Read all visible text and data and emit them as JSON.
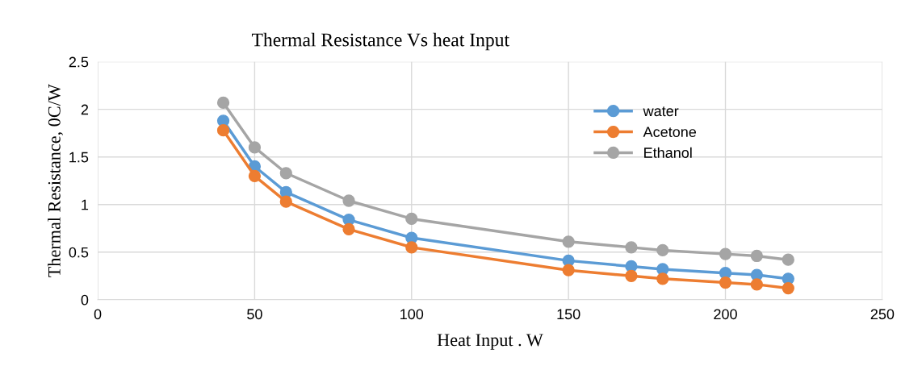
{
  "chart_data": {
    "type": "line",
    "title": "Thermal Resistance Vs heat Input",
    "xlabel": "Heat Input . W",
    "ylabel": "Thermal Resistance, 0C/W",
    "x": [
      40,
      50,
      60,
      80,
      100,
      150,
      170,
      180,
      200,
      210,
      220
    ],
    "series": [
      {
        "name": "water",
        "color": "#5b9bd5",
        "values": [
          1.88,
          1.4,
          1.13,
          0.84,
          0.65,
          0.41,
          0.35,
          0.32,
          0.28,
          0.26,
          0.22
        ]
      },
      {
        "name": "Acetone",
        "color": "#ed7d31",
        "values": [
          1.78,
          1.3,
          1.03,
          0.74,
          0.55,
          0.31,
          0.25,
          0.22,
          0.18,
          0.16,
          0.12
        ]
      },
      {
        "name": "Ethanol",
        "color": "#a5a5a5",
        "values": [
          2.07,
          1.6,
          1.33,
          1.04,
          0.85,
          0.61,
          0.55,
          0.52,
          0.48,
          0.46,
          0.42
        ]
      }
    ],
    "xlim": [
      0,
      250
    ],
    "xticks": [
      0,
      50,
      100,
      150,
      200,
      250
    ],
    "ylim": [
      0,
      2.5
    ],
    "yticks": [
      0,
      {
        "value": 0.5,
        "label": "0.5"
      },
      1,
      {
        "value": 1.5,
        "label": "1.5"
      },
      2,
      {
        "value": 2.5,
        "label": "2.5"
      }
    ],
    "grid": true,
    "legend": "right",
    "marker": "circle",
    "line_style": "solid"
  }
}
